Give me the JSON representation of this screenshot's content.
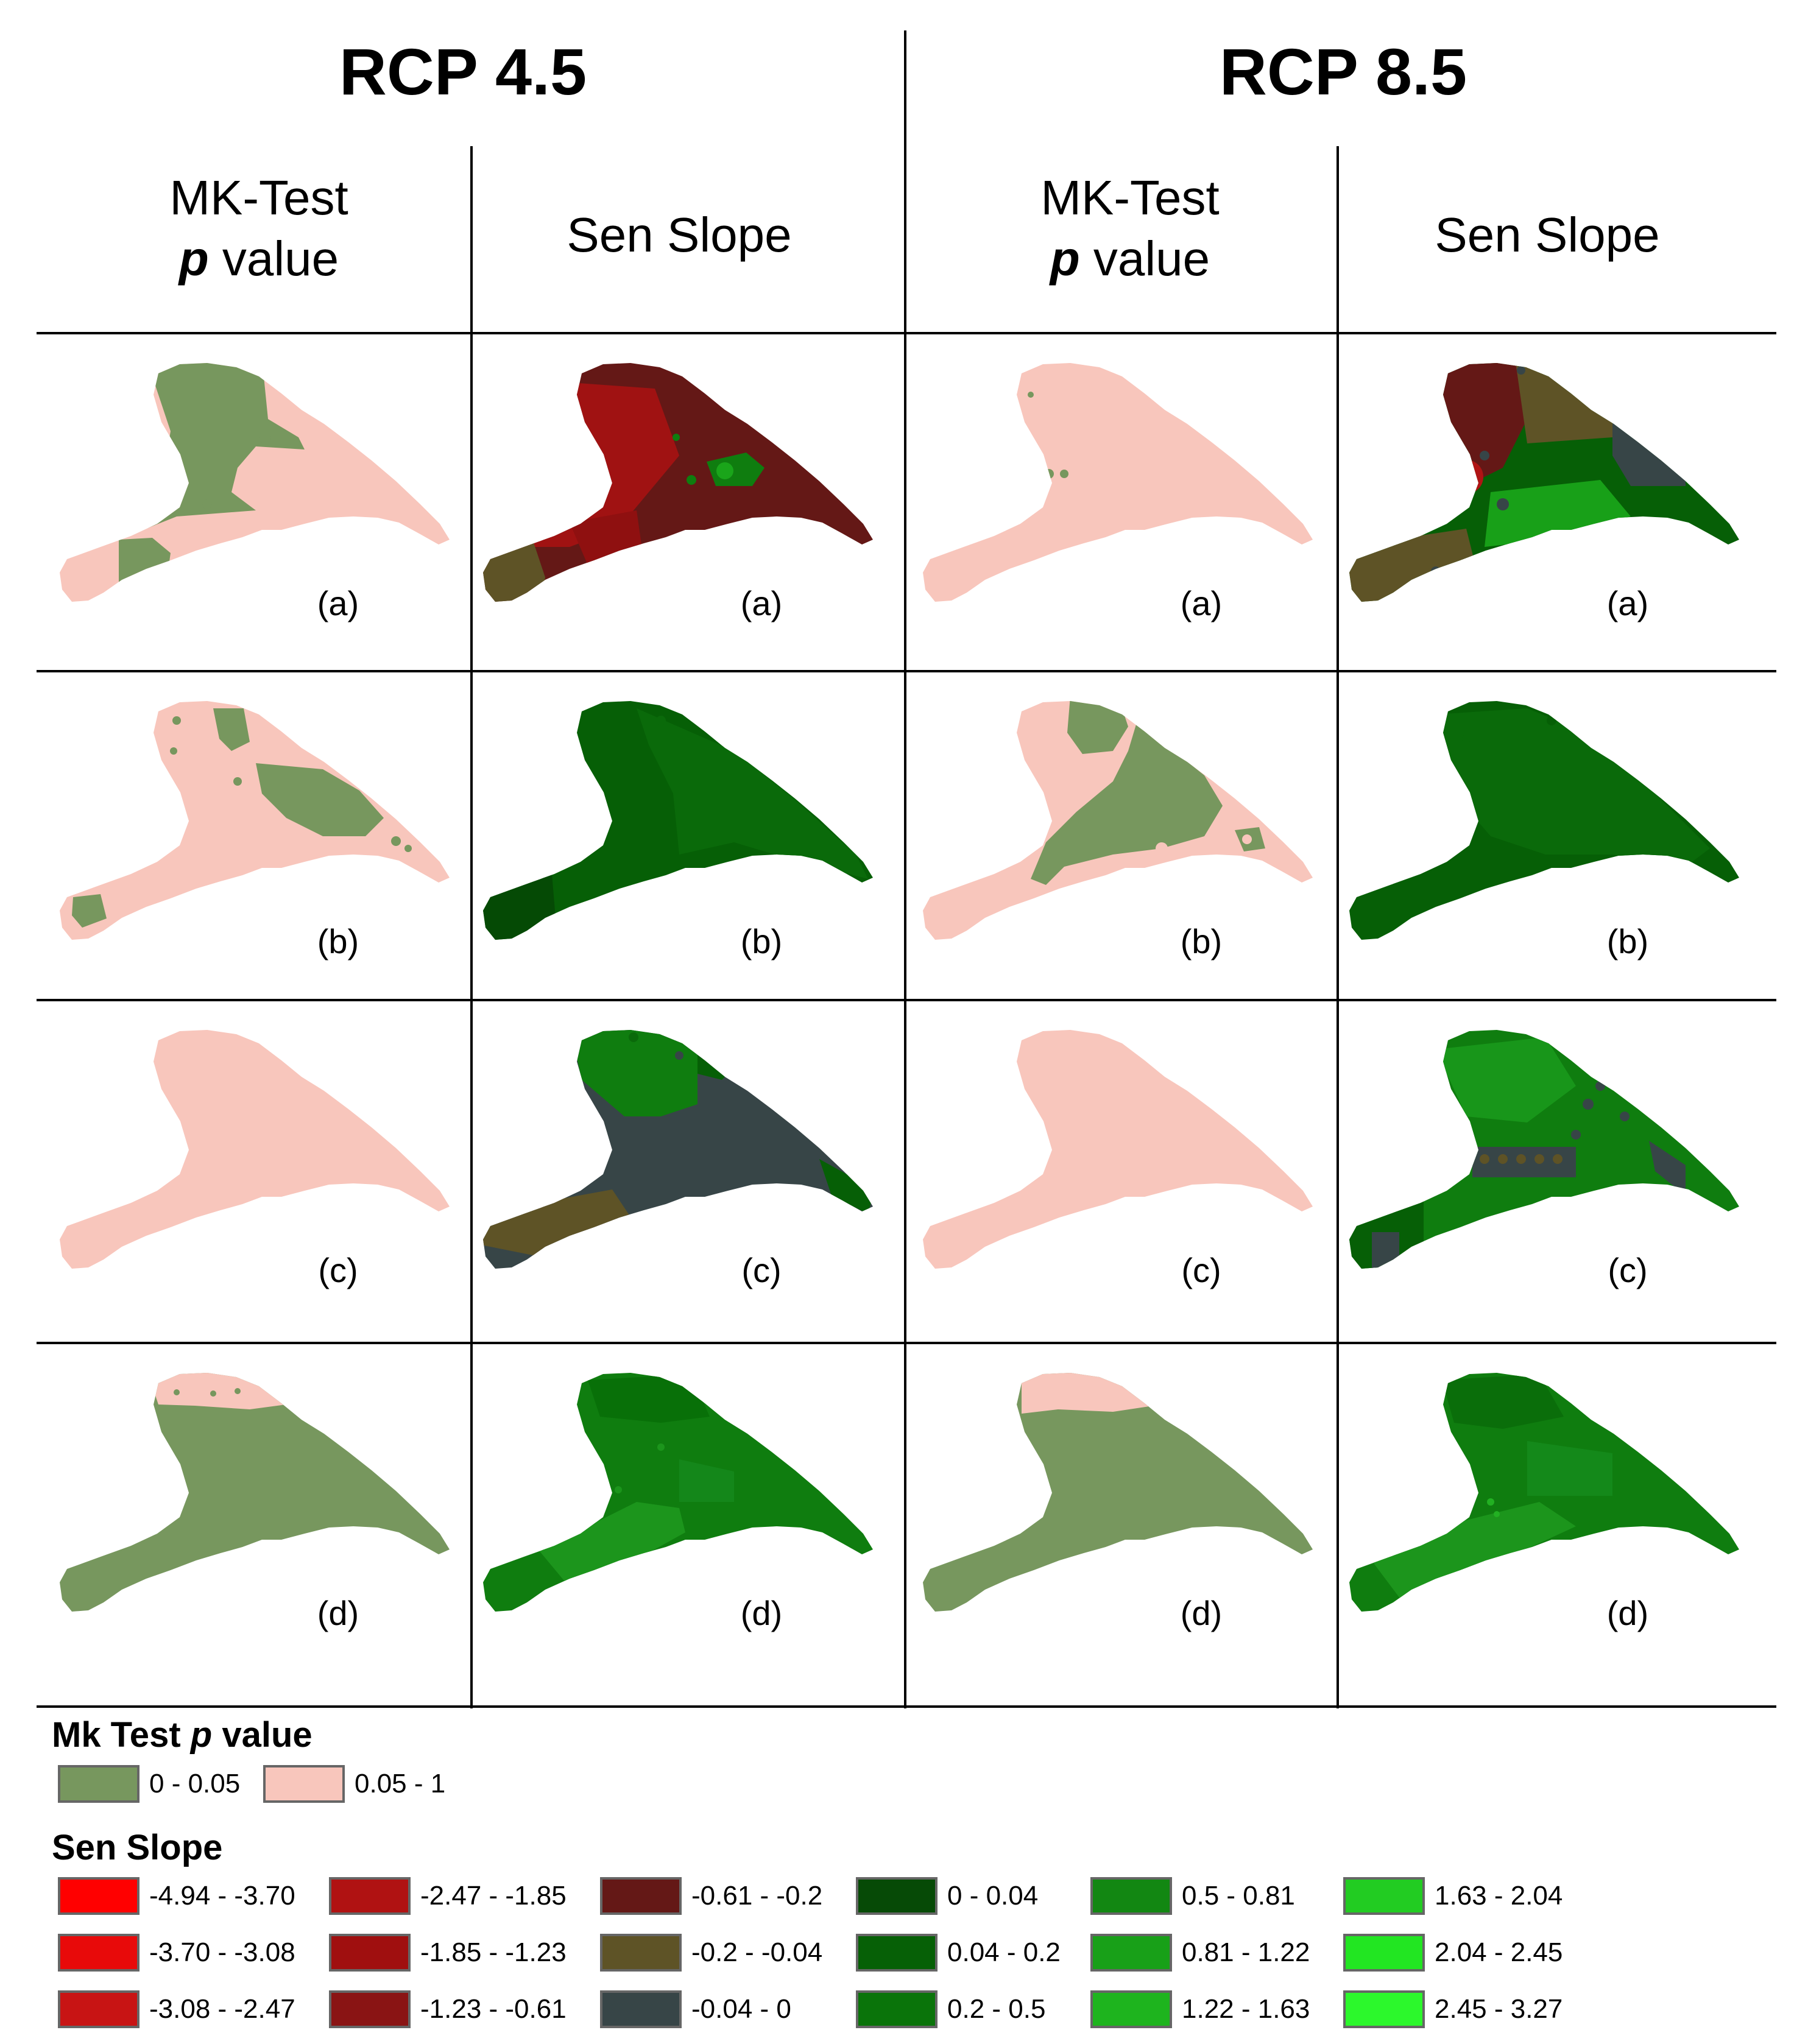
{
  "headers": {
    "rcp45": "RCP 4.5",
    "rcp85": "RCP 8.5",
    "mk_line1": "MK-Test",
    "mk_p": "p",
    "mk_value": " value",
    "sen": "Sen Slope"
  },
  "panel_labels": [
    "(a)",
    "(b)",
    "(c)",
    "(d)"
  ],
  "colors": {
    "mk_sig": "#77975e",
    "mk_nonsig": "#f8c6bc",
    "sen_dark_red": "#641816",
    "sen_red": "#a01212",
    "sen_olive": "#5e5326",
    "sen_slate": "#374547",
    "sen_green_dark": "#065f06",
    "sen_green": "#0f7d0f",
    "sen_green_mid": "#1c951c"
  },
  "legend_mk": {
    "title_prefix": "Mk Test ",
    "title_p": "p",
    "title_suffix": " value",
    "items": [
      {
        "label": "0 - 0.05",
        "color": "#77975e"
      },
      {
        "label": "0.05 - 1",
        "color": "#f8c6bc"
      }
    ]
  },
  "legend_sen": {
    "title": "Sen Slope",
    "columns": [
      [
        {
          "label": "-4.94 - -3.70",
          "color": "#ff0000"
        },
        {
          "label": "-3.70 - -3.08",
          "color": "#e80a0a"
        },
        {
          "label": "-3.08 - -2.47",
          "color": "#c81414"
        }
      ],
      [
        {
          "label": "-2.47 - -1.85",
          "color": "#b01212"
        },
        {
          "label": "-1.85 - -1.23",
          "color": "#a00f0f"
        },
        {
          "label": "-1.23 - -0.61",
          "color": "#8a1414"
        }
      ],
      [
        {
          "label": "-0.61 - -0.2",
          "color": "#641816"
        },
        {
          "label": "-0.2 - -0.04",
          "color": "#5e5326"
        },
        {
          "label": "-0.04 - 0",
          "color": "#374547"
        }
      ],
      [
        {
          "label": "0 - 0.04",
          "color": "#064a06"
        },
        {
          "label": "0.04 - 0.2",
          "color": "#066006"
        },
        {
          "label": "0.2 - 0.5",
          "color": "#0a740a"
        }
      ],
      [
        {
          "label": "0.5 - 0.81",
          "color": "#128712"
        },
        {
          "label": "0.81 - 1.22",
          "color": "#18a018"
        },
        {
          "label": "1.22 - 1.63",
          "color": "#1eb41e"
        }
      ],
      [
        {
          "label": "1.63 - 2.04",
          "color": "#22cc22"
        },
        {
          "label": "2.04 - 2.45",
          "color": "#22e622"
        },
        {
          "label": "2.45 - 3.27",
          "color": "#2cf82c"
        }
      ]
    ]
  }
}
